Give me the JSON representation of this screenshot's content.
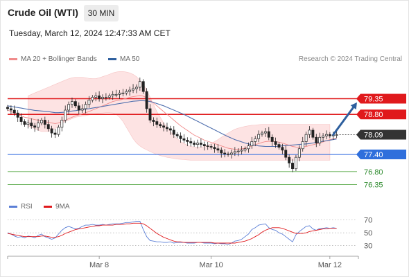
{
  "header": {
    "instrument": "Crude Oil (WTI)",
    "interval": "30 MIN",
    "timestamp": "Tuesday, March 12, 2024 12:47:33 AM CET"
  },
  "legend": {
    "items": [
      {
        "label": "MA 20 + Bollinger Bands",
        "color": "#f08a8a"
      },
      {
        "label": "MA 50",
        "color": "#2e5f9e"
      }
    ],
    "attribution": "Research © 2024 Trading Central"
  },
  "rsi_legend": {
    "items": [
      {
        "label": "RSI",
        "color": "#5b7fd6"
      },
      {
        "label": "9MA",
        "color": "#e0191c"
      }
    ]
  },
  "chart_data": [
    {
      "type": "line",
      "panel": "price",
      "ylim": [
        75.9,
        80.5
      ],
      "xlim": [
        0,
        103
      ],
      "x_ticks": [
        {
          "x": 27,
          "label": "Mar 8"
        },
        {
          "x": 60,
          "label": "Mar 10"
        },
        {
          "x": 95,
          "label": "Mar 12"
        }
      ],
      "levels": [
        {
          "value": 79.35,
          "label": "79.35",
          "kind": "resistance"
        },
        {
          "value": 78.8,
          "label": "78.80",
          "kind": "resistance"
        },
        {
          "value": 77.4,
          "label": "77.40",
          "kind": "support"
        },
        {
          "value": 76.8,
          "label": "76.80",
          "kind": "support2"
        },
        {
          "value": 76.35,
          "label": "76.35",
          "kind": "support2"
        }
      ],
      "last_price": {
        "value": 78.09,
        "label": "78.09"
      },
      "forecast_arrow": {
        "from": [
          96,
          78.09
        ],
        "to": [
          103,
          79.22
        ]
      },
      "close": [
        79.0,
        78.95,
        78.85,
        78.7,
        78.55,
        78.45,
        78.5,
        78.4,
        78.35,
        78.5,
        78.6,
        78.45,
        78.3,
        78.15,
        78.1,
        78.35,
        78.6,
        78.95,
        79.15,
        79.25,
        79.1,
        78.95,
        79.0,
        79.15,
        79.3,
        79.4,
        79.45,
        79.35,
        79.4,
        79.4,
        79.45,
        79.5,
        79.5,
        79.55,
        79.55,
        79.6,
        79.65,
        79.7,
        79.75,
        79.95,
        79.6,
        79.0,
        78.6,
        78.55,
        78.45,
        78.4,
        78.35,
        78.3,
        78.25,
        78.1,
        78.05,
        77.95,
        77.9,
        77.85,
        77.8,
        77.75,
        77.8,
        77.75,
        77.7,
        77.68,
        77.65,
        77.6,
        77.55,
        77.45,
        77.42,
        77.4,
        77.45,
        77.5,
        77.52,
        77.55,
        77.6,
        77.7,
        77.85,
        77.95,
        78.1,
        78.15,
        78.2,
        78.0,
        77.85,
        77.75,
        77.65,
        77.55,
        77.3,
        77.1,
        76.9,
        77.3,
        77.6,
        77.85,
        78.1,
        78.25,
        78.0,
        77.8,
        78.0,
        78.05,
        78.1,
        78.05,
        78.08,
        78.09
      ],
      "series": [
        {
          "name": "MA 20",
          "values": [
            78.95,
            78.9,
            78.85,
            78.8,
            78.75,
            78.7,
            78.68,
            78.65,
            78.62,
            78.6,
            78.58,
            78.55,
            78.52,
            78.5,
            78.48,
            78.5,
            78.55,
            78.6,
            78.65,
            78.7,
            78.75,
            78.78,
            78.82,
            78.86,
            78.9,
            78.95,
            79.0,
            79.05,
            79.1,
            79.15,
            79.2,
            79.25,
            79.28,
            79.3,
            79.33,
            79.36,
            79.4,
            79.42,
            79.44,
            79.46,
            79.44,
            79.38,
            79.3,
            79.2,
            79.1,
            79.0,
            78.9,
            78.8,
            78.7,
            78.6,
            78.5,
            78.4,
            78.32,
            78.24,
            78.16,
            78.08,
            78.02,
            77.96,
            77.9,
            77.86,
            77.82,
            77.78,
            77.74,
            77.7,
            77.66,
            77.62,
            77.6,
            77.58,
            77.58,
            77.6,
            77.62,
            77.66,
            77.7,
            77.74,
            77.78,
            77.82,
            77.85,
            77.86,
            77.86,
            77.85,
            77.83,
            77.8,
            77.76,
            77.72,
            77.68,
            77.66,
            77.65,
            77.66,
            77.68,
            77.71,
            77.74,
            77.77,
            77.8,
            77.84,
            77.88,
            77.92,
            77.95,
            77.97
          ]
        },
        {
          "name": "MA 50",
          "values": [
            79.1,
            79.08,
            79.06,
            79.04,
            79.02,
            79.0,
            78.98,
            78.96,
            78.94,
            78.93,
            78.92,
            78.91,
            78.9,
            78.88,
            78.86,
            78.86,
            78.87,
            78.88,
            78.9,
            78.92,
            78.93,
            78.95,
            78.97,
            78.99,
            79.0,
            79.02,
            79.04,
            79.06,
            79.08,
            79.1,
            79.12,
            79.14,
            79.16,
            79.18,
            79.2,
            79.22,
            79.24,
            79.26,
            79.27,
            79.28,
            79.28,
            79.27,
            79.25,
            79.22,
            79.18,
            79.14,
            79.1,
            79.05,
            79.0,
            78.95,
            78.9,
            78.85,
            78.8,
            78.74,
            78.68,
            78.62,
            78.56,
            78.5,
            78.44,
            78.38,
            78.32,
            78.26,
            78.2,
            78.14,
            78.08,
            78.02,
            77.97,
            77.92,
            77.88,
            77.84,
            77.8,
            77.77,
            77.74,
            77.72,
            77.7,
            77.69,
            77.68,
            77.68,
            77.68,
            77.68,
            77.69,
            77.7,
            77.71,
            77.72,
            77.73,
            77.74,
            77.75,
            77.76,
            77.77,
            77.78,
            77.8,
            77.82,
            77.84,
            77.86,
            77.88,
            77.9,
            77.92,
            77.94
          ]
        }
      ],
      "bands": {
        "x_start": 6,
        "upper": [
          79.45,
          79.5,
          79.55,
          79.6,
          79.65,
          79.7,
          79.75,
          79.8,
          79.85,
          79.9,
          79.95,
          80.0,
          80.05,
          80.08,
          80.1,
          80.1,
          80.1,
          80.08,
          80.06,
          80.05,
          80.05,
          80.08,
          80.12,
          80.16,
          80.2,
          80.25,
          80.28,
          80.3,
          80.3,
          80.28,
          80.25,
          80.2,
          80.12,
          80.0,
          79.85,
          79.65,
          79.4,
          79.15,
          78.9,
          78.7,
          78.5,
          78.35,
          78.2,
          78.05,
          77.95,
          77.85,
          77.78,
          77.72,
          77.68,
          77.66,
          77.65,
          77.65,
          77.68,
          77.72,
          77.78,
          77.85,
          77.92,
          78.0,
          78.08,
          78.15,
          78.22,
          78.28,
          78.32,
          78.35,
          78.38,
          78.4,
          78.42,
          78.43,
          78.44,
          78.45,
          78.45,
          78.45,
          78.45,
          78.45,
          78.45,
          78.45,
          78.45,
          78.45,
          78.45,
          78.45,
          78.45,
          78.45,
          78.45,
          78.45,
          78.45,
          78.45,
          78.45,
          78.45,
          78.45,
          78.45
        ],
        "lower": [
          78.4,
          78.35,
          78.3,
          78.25,
          78.2,
          78.2,
          78.2,
          78.25,
          78.3,
          78.4,
          78.5,
          78.55,
          78.6,
          78.65,
          78.7,
          78.72,
          78.74,
          78.76,
          78.78,
          78.8,
          78.82,
          78.84,
          78.85,
          78.86,
          78.86,
          78.85,
          78.8,
          78.7,
          78.55,
          78.35,
          78.15,
          77.95,
          77.8,
          77.7,
          77.62,
          77.56,
          77.5,
          77.45,
          77.4,
          77.36,
          77.33,
          77.3,
          77.28,
          77.26,
          77.24,
          77.23,
          77.22,
          77.21,
          77.2,
          77.2,
          77.2,
          77.2,
          77.2,
          77.2,
          77.2,
          77.2,
          77.2,
          77.2,
          77.2,
          77.2,
          77.2,
          77.2,
          77.2,
          77.2,
          77.2,
          77.2,
          77.2,
          77.2,
          77.2,
          77.2,
          77.2,
          77.2,
          77.2,
          77.2,
          77.2,
          77.2,
          77.2,
          77.2,
          77.2,
          77.2,
          77.2,
          77.2,
          77.2,
          77.2,
          77.2,
          77.2,
          77.2,
          77.2,
          77.2,
          77.2
        ]
      }
    },
    {
      "type": "line",
      "panel": "rsi",
      "ylim": [
        20,
        75
      ],
      "y_ticks": [
        70,
        50,
        30
      ],
      "series": [
        {
          "name": "RSI",
          "values": [
            50,
            48,
            45,
            43,
            44,
            42,
            45,
            44,
            42,
            46,
            48,
            44,
            42,
            40,
            42,
            48,
            54,
            58,
            60,
            58,
            56,
            57,
            60,
            62,
            62,
            63,
            62,
            62,
            63,
            62,
            63,
            64,
            64,
            64,
            65,
            66,
            66,
            67,
            68,
            68,
            55,
            44,
            38,
            37,
            36,
            36,
            35,
            35,
            36,
            34,
            35,
            35,
            35,
            34,
            34,
            34,
            35,
            35,
            34,
            34,
            34,
            33,
            34,
            33,
            33,
            32,
            34,
            37,
            38,
            40,
            44,
            48,
            55,
            58,
            62,
            63,
            64,
            58,
            55,
            54,
            50,
            48,
            44,
            40,
            36,
            47,
            52,
            56,
            60,
            61,
            56,
            54,
            57,
            57,
            58,
            57,
            58,
            57
          ]
        },
        {
          "name": "9MA",
          "values": [
            49,
            48,
            47,
            46,
            45,
            44,
            44,
            44,
            44,
            44,
            45,
            45,
            44,
            43,
            43,
            44,
            46,
            49,
            51,
            53,
            55,
            56,
            57,
            58,
            59,
            60,
            61,
            61,
            62,
            62,
            62,
            62,
            63,
            63,
            63,
            64,
            64,
            65,
            65,
            65,
            64,
            61,
            57,
            53,
            49,
            46,
            43,
            41,
            39,
            37,
            36,
            36,
            35,
            35,
            35,
            35,
            35,
            35,
            35,
            35,
            35,
            34,
            34,
            34,
            34,
            34,
            34,
            34,
            35,
            36,
            37,
            39,
            41,
            44,
            47,
            51,
            54,
            56,
            58,
            58,
            58,
            57,
            55,
            53,
            51,
            49,
            49,
            49,
            50,
            52,
            53,
            54,
            55,
            56,
            56,
            57,
            57,
            57
          ]
        }
      ]
    }
  ]
}
